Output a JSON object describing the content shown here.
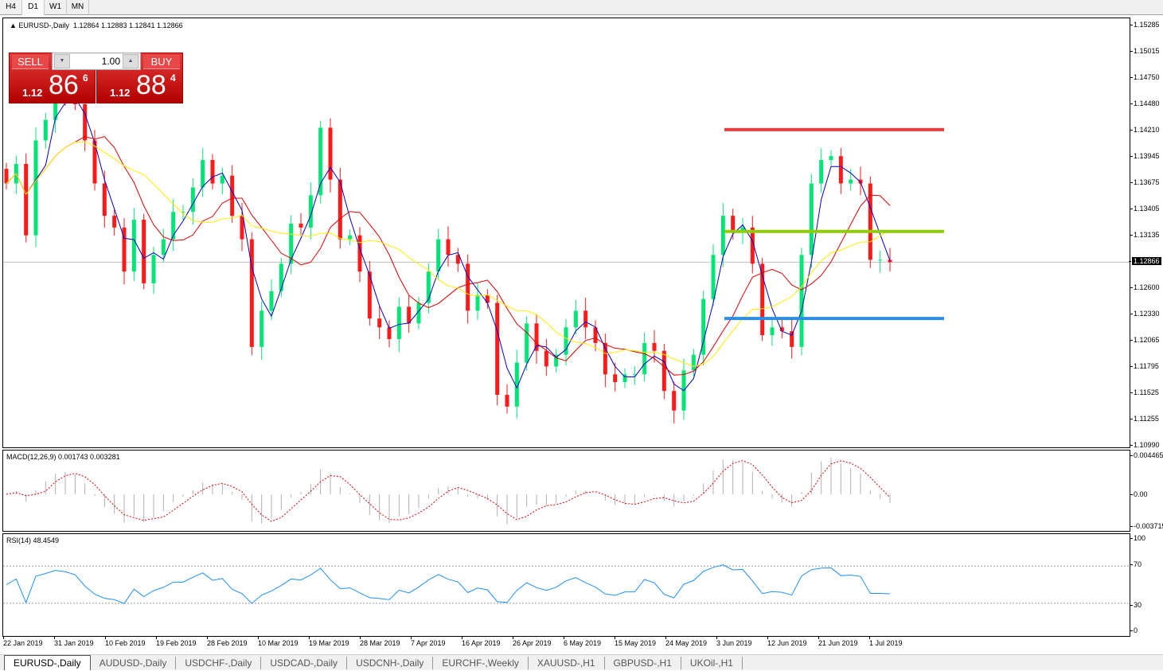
{
  "timeframes": [
    "H4",
    "D1",
    "W1",
    "MN"
  ],
  "active_timeframe": "D1",
  "chart": {
    "symbol_title": "EURUSD-,Daily",
    "ohlc": "1.12864 1.12883 1.12841 1.12866",
    "current_price": "1.12866",
    "price_ticks": [
      "1.15285",
      "1.15015",
      "1.14750",
      "1.14480",
      "1.14210",
      "1.13945",
      "1.13675",
      "1.13405",
      "1.13135",
      "1.12600",
      "1.12330",
      "1.12065",
      "1.11795",
      "1.11525",
      "1.11255",
      "1.10990"
    ],
    "price_range": [
      1.1099,
      1.15285
    ],
    "date_ticks": [
      "22 Jan 2019",
      "31 Jan 2019",
      "10 Feb 2019",
      "19 Feb 2019",
      "28 Feb 2019",
      "10 Mar 2019",
      "19 Mar 2019",
      "28 Mar 2019",
      "7 Apr 2019",
      "16 Apr 2019",
      "26 Apr 2019",
      "6 May 2019",
      "15 May 2019",
      "24 May 2019",
      "3 Jun 2019",
      "12 Jun 2019",
      "21 Jun 2019",
      "1 Jul 2019"
    ],
    "closes": [
      1.1367,
      1.1387,
      1.1314,
      1.1411,
      1.1432,
      1.146,
      1.1456,
      1.1448,
      1.1411,
      1.1367,
      1.1334,
      1.1322,
      1.1277,
      1.133,
      1.1265,
      1.1294,
      1.131,
      1.1338,
      1.1338,
      1.1363,
      1.1391,
      1.1367,
      1.1375,
      1.1334,
      1.131,
      1.12,
      1.1237,
      1.1257,
      1.1285,
      1.1326,
      1.1322,
      1.1355,
      1.1424,
      1.1371,
      1.131,
      1.1314,
      1.1277,
      1.1229,
      1.122,
      1.1208,
      1.1241,
      1.1224,
      1.1245,
      1.1277,
      1.131,
      1.1294,
      1.1285,
      1.1237,
      1.1253,
      1.1245,
      1.1151,
      1.1139,
      1.1184,
      1.1224,
      1.1196,
      1.118,
      1.1192,
      1.122,
      1.1237,
      1.122,
      1.1204,
      1.1172,
      1.1164,
      1.1172,
      1.1172,
      1.1204,
      1.1196,
      1.1155,
      1.1135,
      1.1176,
      1.1192,
      1.1249,
      1.1294,
      1.1334,
      1.1318,
      1.1322,
      1.1285,
      1.1212,
      1.122,
      1.1216,
      1.12,
      1.1294,
      1.1367,
      1.1391,
      1.1395,
      1.1367,
      1.1371,
      1.1367,
      1.1289,
      1.1289,
      1.12866
    ],
    "levels": [
      {
        "price": 1.1422,
        "color": "#f23a3a"
      },
      {
        "price": 1.1318,
        "color": "#8fcc00"
      },
      {
        "price": 1.1229,
        "color": "#2a8ee8"
      }
    ],
    "colors": {
      "bull": "#00e676",
      "bear": "#ff1a1a",
      "ma_fast": "#0000cc",
      "ma_mid": "#e00000",
      "ma_slow": "#ffee00"
    }
  },
  "trade_panel": {
    "sell_label": "SELL",
    "buy_label": "BUY",
    "lot": "1.00",
    "sell_prefix": "1.12",
    "sell_big": "86",
    "sell_sup": "6",
    "buy_prefix": "1.12",
    "buy_big": "88",
    "buy_sup": "4"
  },
  "macd": {
    "label": "MACD(12,26,9) 0.001743 0.003281",
    "ticks": [
      "0.004465",
      "0.00",
      "-0.003715"
    ]
  },
  "rsi": {
    "label": "RSI(14) 48.4549",
    "ticks": [
      "100",
      "70",
      "30",
      "0"
    ]
  },
  "tabs": [
    "EURUSD-,Daily",
    "AUDUSD-,Daily",
    "USDCHF-,Daily",
    "USDCAD-,Daily",
    "USDCNH-,Daily",
    "EURCHF-,Weekly",
    "XAUUSD-,H1",
    "GBPUSD-,H1",
    "UKOil-,H1"
  ]
}
